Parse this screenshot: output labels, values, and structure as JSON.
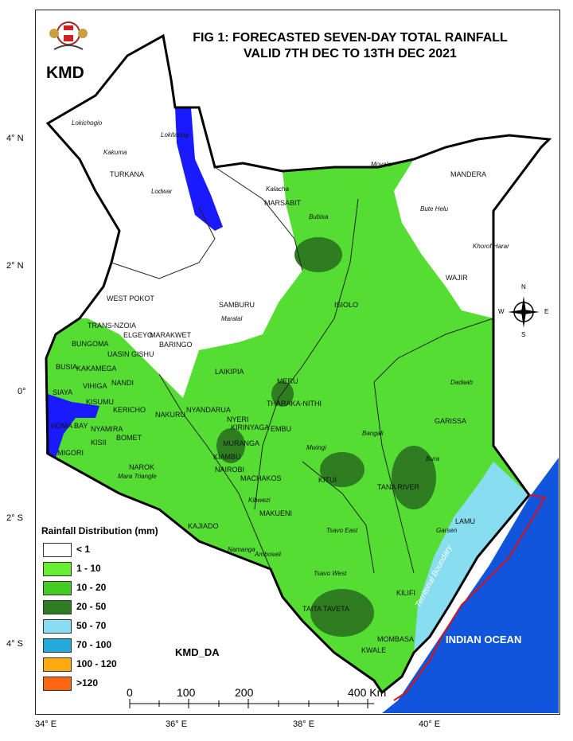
{
  "title": {
    "line1": "FIG 1: FORECASTED SEVEN-DAY TOTAL RAINFALL",
    "line2": "VALID 7TH DEC TO 13TH DEC 2021"
  },
  "org": "KMD",
  "credit": "KMD_DA",
  "axes": {
    "lat_ticks": [
      "4° N",
      "2° N",
      "0°",
      "2° S",
      "4° S"
    ],
    "lon_ticks": [
      "34° E",
      "36° E",
      "38° E",
      "40° E"
    ]
  },
  "legend": {
    "title": "Rainfall Distribution (mm)",
    "items": [
      {
        "label": "< 1",
        "color": "#ffffff"
      },
      {
        "label": "1 - 10",
        "color": "#66ee33"
      },
      {
        "label": "10 - 20",
        "color": "#44cc22"
      },
      {
        "label": "20 - 50",
        "color": "#2e7d20"
      },
      {
        "label": "50 - 70",
        "color": "#88ddf0"
      },
      {
        "label": "70 - 100",
        "color": "#22aadd"
      },
      {
        "label": "100 - 120",
        "color": "#ffaa11"
      },
      {
        "label": ">120",
        "color": "#ff6611"
      }
    ]
  },
  "scale_bar": {
    "ticks": [
      "0",
      "100",
      "200",
      "400 Km"
    ]
  },
  "compass": {
    "n": "N",
    "s": "S",
    "e": "E",
    "w": "W"
  },
  "ocean": "INDIAN OCEAN",
  "boundary": "Territorial Boundary",
  "counties": {
    "turkana": "TURKANA",
    "marsabit": "MARSABIT",
    "mandera": "MANDERA",
    "wajir": "WAJIR",
    "west_pokot": "WEST POKOT",
    "samburu": "SAMBURU",
    "isiolo": "ISIOLO",
    "trans_nzoia": "TRANS-NZOIA",
    "marakwet": "MARAKWET",
    "elgeyo": "ELGEYO",
    "bungoma": "BUNGOMA",
    "uasin_gishu": "UASIN GISHU",
    "baringo": "BARINGO",
    "busia": "BUSIA",
    "kakamega": "KAKAMEGA",
    "vihiga": "VIHIGA",
    "nandi": "NANDI",
    "laikipia": "LAIKIPIA",
    "meru": "MERU",
    "siaya": "SIAYA",
    "kisumu": "KISUMU",
    "kericho": "KERICHO",
    "nakuru": "NAKURU",
    "nyandarua": "NYANDARUA",
    "tharaka_nithi": "THARAKA-NITHI",
    "homa_bay": "HOMA BAY",
    "nyamira": "NYAMIRA",
    "kisii": "KISII",
    "bomet": "BOMET",
    "nyeri": "NYERI",
    "kirinyaga": "KIRINYAGA",
    "embu": "EMBU",
    "garissa": "GARISSA",
    "migori": "MIGORI",
    "muranga": "MURANGA",
    "kiambu": "KIAMBU",
    "narok": "NAROK",
    "nairobi": "NAIROBI",
    "machakos": "MACHAKOS",
    "kitui": "KITUI",
    "tana_river": "TANA RIVER",
    "kajiado": "KAJIADO",
    "makueni": "MAKUENI",
    "lamu": "LAMU",
    "kilifi": "KILIFI",
    "taita_taveta": "TAITA TAVETA",
    "mombasa": "MOMBASA",
    "kwale": "KWALE"
  },
  "towns": {
    "lokichogio": "Lokichogio",
    "lokitaung": "Lokitaung",
    "kakuma": "Kakuma",
    "lodwar": "Lodwar",
    "kalacha": "Kalacha",
    "moyale": "Moyale",
    "bubisa": "Bubisa",
    "bute_helu": "Bute Helu",
    "khorof_harar": "Khorof Harar",
    "maralal": "Maralal",
    "dadaab": "Dadaab",
    "bangali": "Bangali",
    "mwingi": "Mwingi",
    "bura": "Bura",
    "mara_triangle": "Mara Triangle",
    "kibwezi": "Kibwezi",
    "tsavo_east": "Tsavo East",
    "garsen": "Garsen",
    "namanga": "Namanga",
    "amboseli": "Amboseli",
    "tsavo_west": "Tsavo West"
  }
}
